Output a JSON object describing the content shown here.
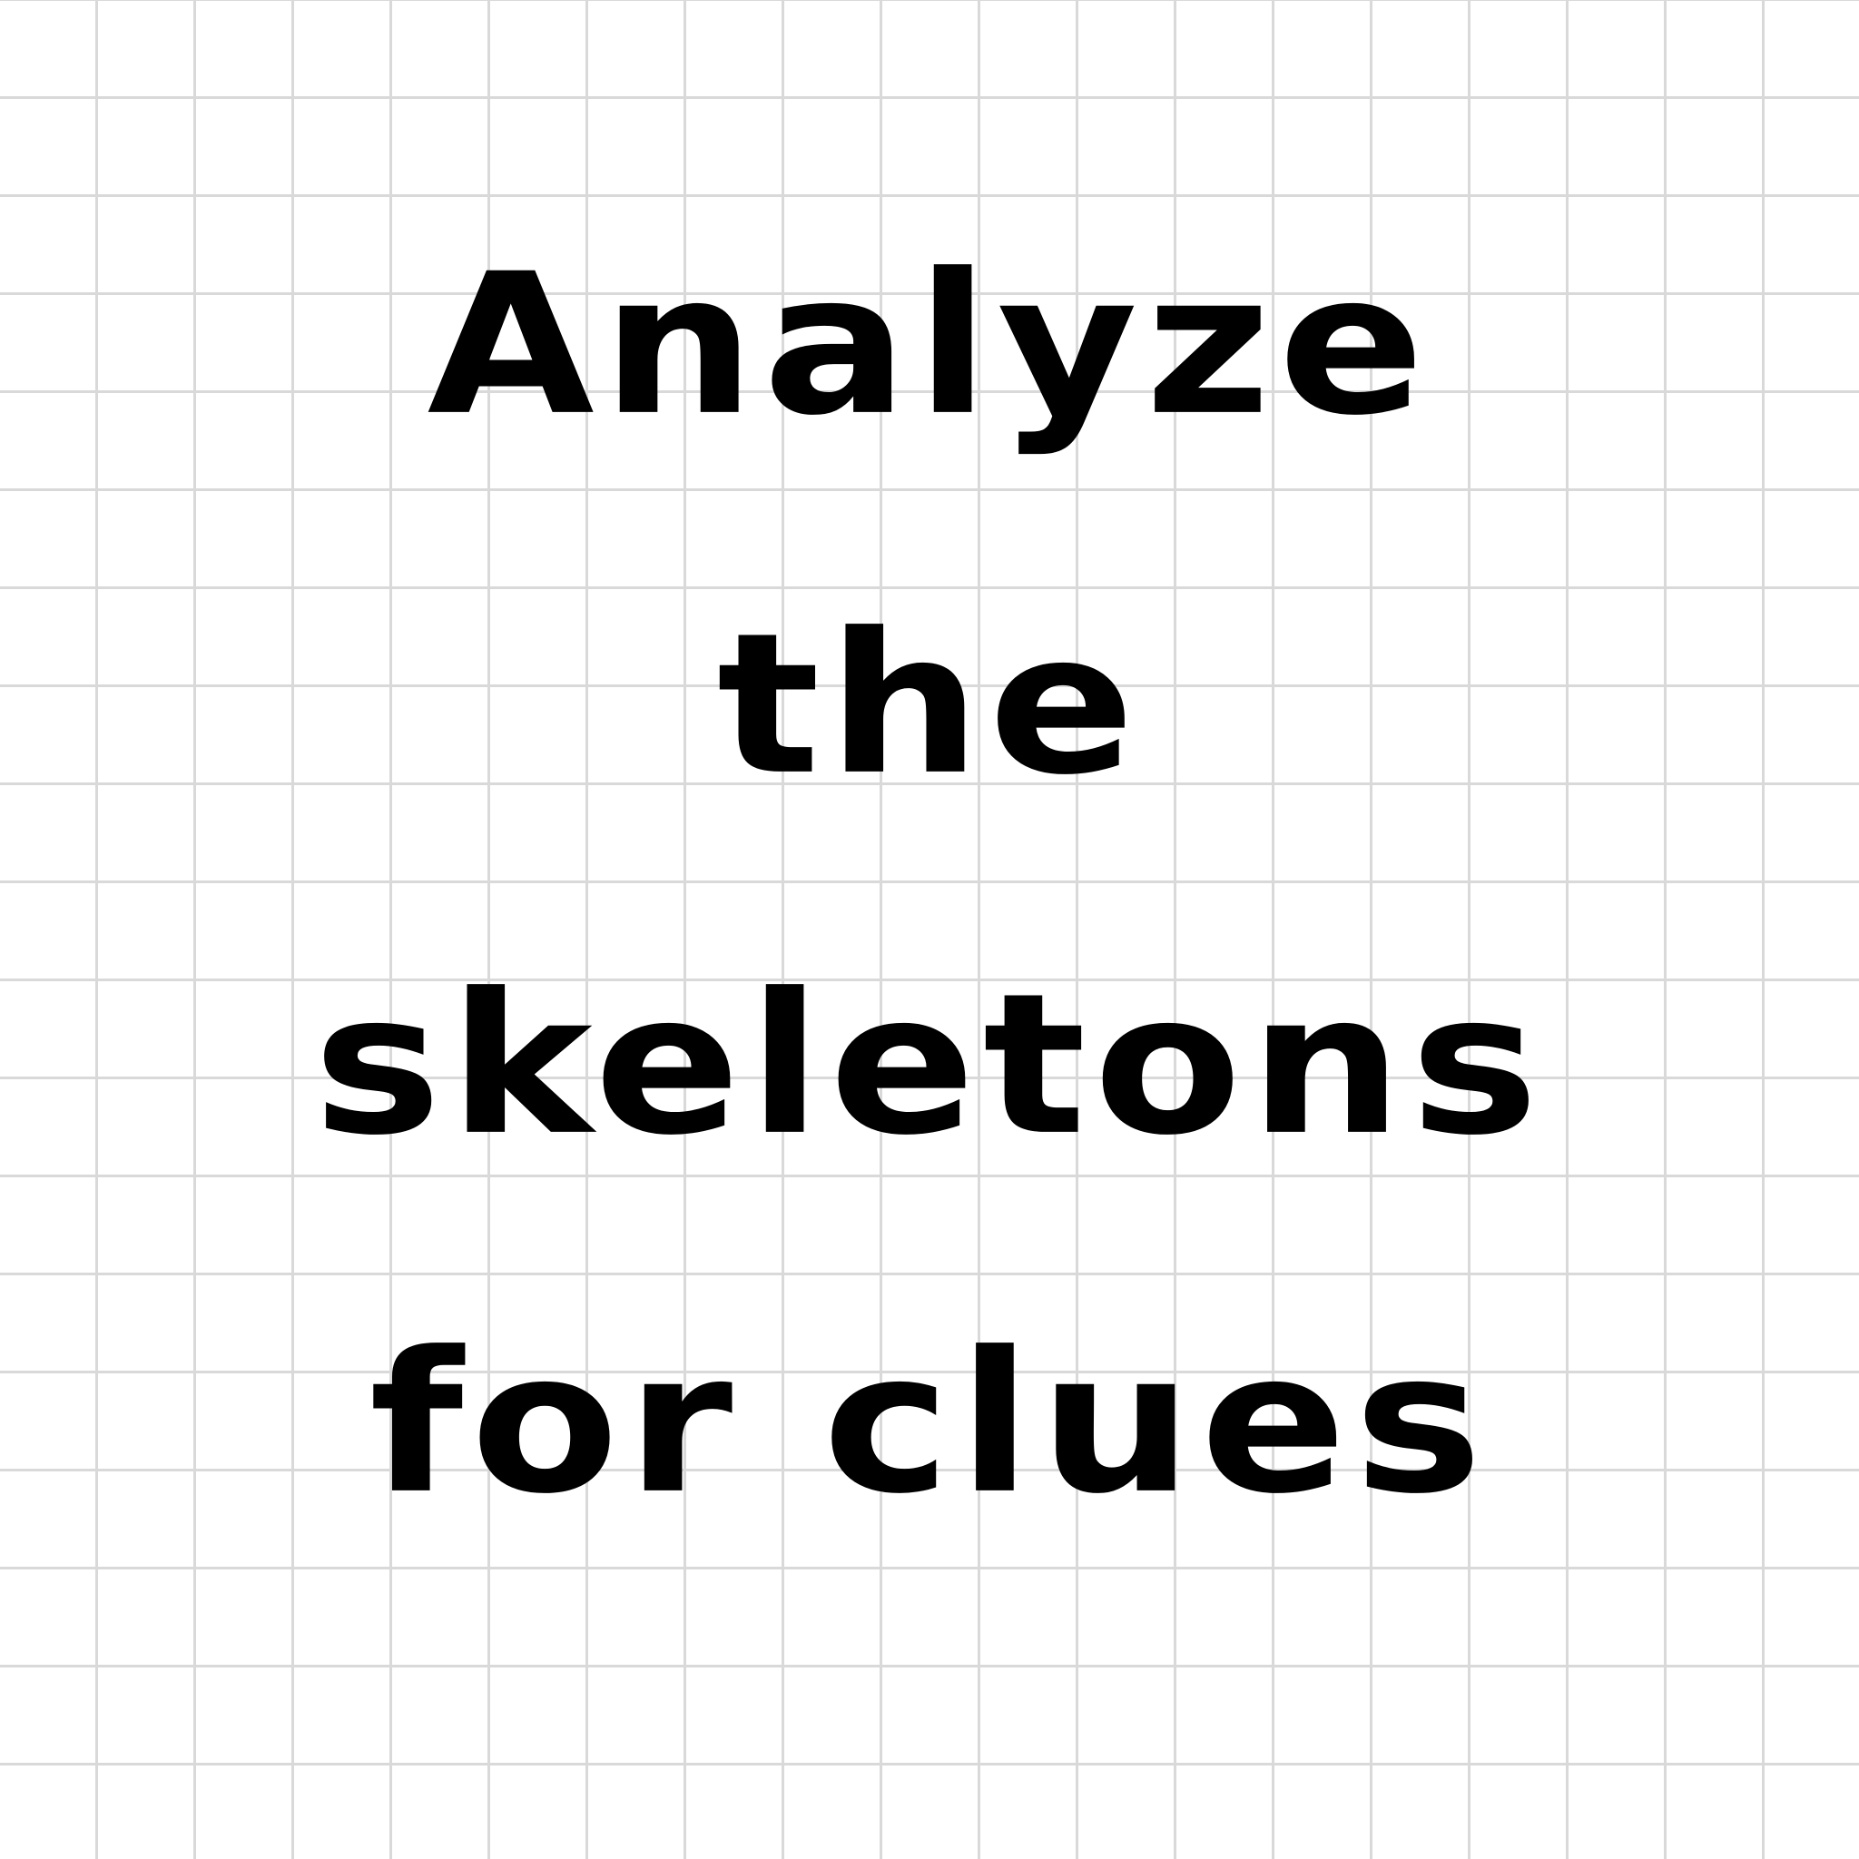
{
  "headline": {
    "line1": "Analyze",
    "line2": "the",
    "line3": "skeletons",
    "line4": "for clues"
  }
}
